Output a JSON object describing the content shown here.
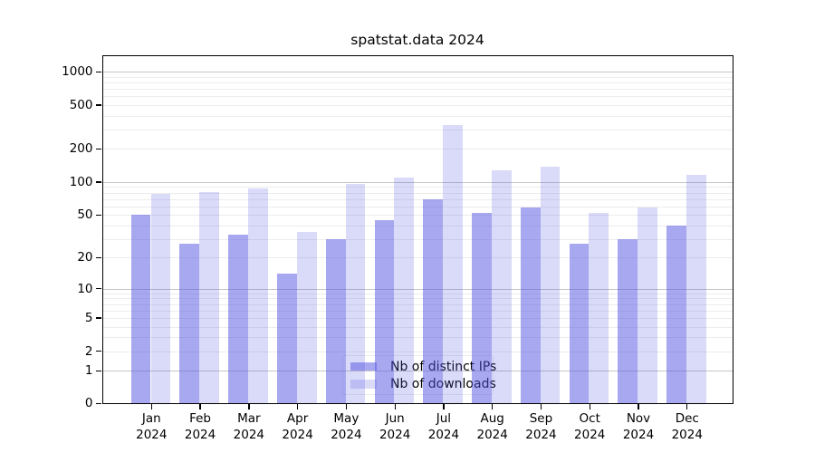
{
  "figure": {
    "title": "spatstat.data 2024"
  },
  "chart_data": {
    "type": "bar",
    "title": "spatstat.data 2024",
    "xlabel": "",
    "ylabel": "",
    "yscale": "log1p",
    "grid": true,
    "legend_position": "bottom-center-inside",
    "ylim": [
      0,
      1400
    ],
    "yticks": [
      0,
      1,
      2,
      5,
      10,
      20,
      50,
      100,
      200,
      500,
      1000
    ],
    "major_grid_values": [
      1,
      10,
      100,
      1000
    ],
    "months": [
      "Jan",
      "Feb",
      "Mar",
      "Apr",
      "May",
      "Jun",
      "Jul",
      "Aug",
      "Sep",
      "Oct",
      "Nov",
      "Dec"
    ],
    "year_label": "2024",
    "categories": [
      "Jan 2024",
      "Feb 2024",
      "Mar 2024",
      "Apr 2024",
      "May 2024",
      "Jun 2024",
      "Jul 2024",
      "Aug 2024",
      "Sep 2024",
      "Oct 2024",
      "Nov 2024",
      "Dec 2024"
    ],
    "series": [
      {
        "name": "Nb of distinct IPs",
        "rgba": "rgba(81,81,225,0.5)",
        "hex_on_white": "#A8A8F0",
        "values": [
          50,
          27,
          33,
          14,
          30,
          45,
          70,
          52,
          58,
          27,
          30,
          40
        ]
      },
      {
        "name": "Nb of downloads",
        "rgba": "rgba(81,81,225,0.21)",
        "hex_on_white": "#DBDBF8",
        "values": [
          78,
          81,
          87,
          35,
          96,
          109,
          330,
          128,
          137,
          52,
          59,
          116
        ]
      }
    ]
  },
  "colors": {
    "background": "#ffffff",
    "axis": "#000000",
    "grid_major": "#c6c6c6",
    "grid_minor": "#ececec",
    "bar_dark": "#A8A8F0",
    "bar_light": "#DBDBF8"
  }
}
